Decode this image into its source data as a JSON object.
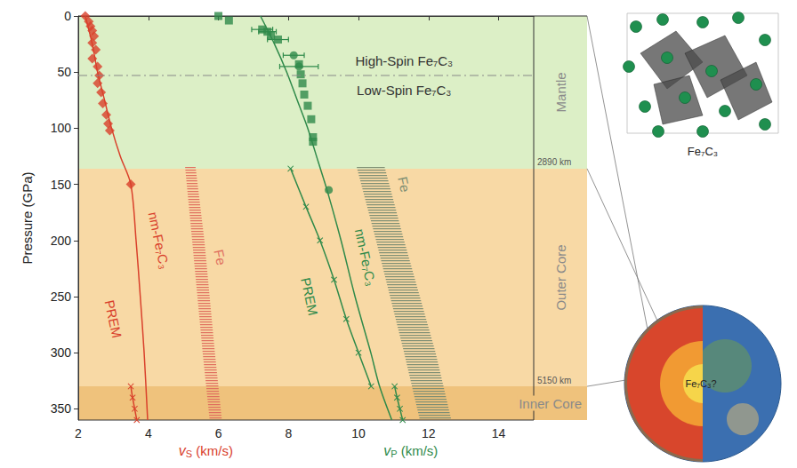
{
  "chart_data": {
    "type": "line",
    "y_label": "Pressure (GPa)",
    "x_labels": [
      {
        "symbol": "v",
        "subscript": "S",
        "unit": "(km/s)",
        "color": "#d9402b"
      },
      {
        "symbol": "v",
        "subscript": "P",
        "unit": "(km/s)",
        "color": "#2f8a4a"
      }
    ],
    "xlim": [
      2,
      15
    ],
    "xticks": [
      2,
      4,
      6,
      8,
      10,
      12,
      14
    ],
    "ylim": [
      0,
      360
    ],
    "yticks": [
      0,
      50,
      100,
      150,
      200,
      250,
      300,
      350
    ],
    "grid": false,
    "regions": [
      {
        "label": "Mantle",
        "from": 0,
        "to": 136,
        "color": "#dcefc6"
      },
      {
        "label": "Outer Core",
        "from": 136,
        "to": 330,
        "color": "#f8d9a5"
      },
      {
        "label": "Inner Core",
        "from": 330,
        "to": 360,
        "color": "#efc27c"
      }
    ],
    "boundaries": [
      {
        "pressure": 136,
        "label": "2890 km"
      },
      {
        "pressure": 330,
        "label": "5150 km"
      }
    ],
    "spin_transition": {
      "pressure": 53,
      "above": "High-Spin Fe₇C₃",
      "below": "Low-Spin Fe₇C₃",
      "text_at": [
        [
          11.3,
          40
        ],
        [
          11.3,
          66
        ]
      ]
    },
    "series": [
      {
        "type": "scatter",
        "marker": "diamond",
        "color": "#d9402b",
        "points": [
          [
            2.2,
            0
          ],
          [
            2.3,
            5
          ],
          [
            2.35,
            9
          ],
          [
            2.4,
            13
          ],
          [
            2.45,
            18
          ],
          [
            2.4,
            24
          ],
          [
            2.5,
            30
          ],
          [
            2.4,
            38
          ],
          [
            2.55,
            45
          ],
          [
            2.6,
            53
          ],
          [
            2.55,
            60
          ],
          [
            2.65,
            68
          ],
          [
            2.7,
            78
          ],
          [
            2.8,
            88
          ],
          [
            2.85,
            96
          ],
          [
            2.9,
            102
          ],
          [
            3.5,
            150
          ]
        ]
      },
      {
        "marker": "none",
        "color": "#d9402b",
        "label": "nm-Fe₇C₃",
        "label_at": [
          4.3,
          200
        ],
        "points": [
          [
            2.2,
            0
          ],
          [
            2.4,
            25
          ],
          [
            2.55,
            50
          ],
          [
            2.75,
            75
          ],
          [
            2.95,
            100
          ],
          [
            3.2,
            125
          ],
          [
            3.5,
            150
          ],
          [
            3.65,
            200
          ],
          [
            3.77,
            250
          ],
          [
            3.88,
            300
          ],
          [
            3.98,
            360
          ]
        ]
      },
      {
        "marker": "cross",
        "color": "#d9402b",
        "label": "PREM",
        "label_at": [
          3.0,
          270
        ],
        "points": [
          [
            3.5,
            330
          ],
          [
            3.55,
            340
          ],
          [
            3.61,
            350
          ],
          [
            3.67,
            360
          ]
        ]
      },
      {
        "type": "band",
        "color": "#e0705f",
        "label": "Fe",
        "label_at": [
          6.05,
          215
        ],
        "pressure": [
          135,
          200,
          250,
          300,
          360
        ],
        "vmin": [
          5.05,
          5.25,
          5.4,
          5.55,
          5.75
        ],
        "vmax": [
          5.35,
          5.6,
          5.75,
          5.9,
          6.1
        ]
      },
      {
        "type": "scatter",
        "marker": "square",
        "color": "#2f8a4a",
        "points": [
          [
            6.0,
            0
          ],
          [
            6.3,
            4
          ],
          [
            7.25,
            12
          ],
          [
            7.4,
            14
          ],
          [
            7.5,
            17
          ],
          [
            7.7,
            21
          ],
          [
            8.3,
            43
          ],
          [
            8.35,
            52
          ],
          [
            8.4,
            60
          ],
          [
            8.45,
            70
          ],
          [
            8.55,
            80
          ],
          [
            8.65,
            92
          ],
          [
            8.7,
            108
          ],
          [
            8.7,
            112
          ]
        ],
        "xerr": [
          null,
          null,
          0.3,
          0.25,
          null,
          0.3,
          null,
          null,
          null,
          null,
          null,
          null,
          null,
          null
        ]
      },
      {
        "type": "scatter",
        "marker": "circle",
        "color": "#2f8a4a",
        "points": [
          [
            8.15,
            35
          ],
          [
            8.3,
            45
          ],
          [
            9.15,
            155
          ]
        ],
        "xerr": [
          0.3,
          0.55,
          null
        ]
      },
      {
        "marker": "none",
        "color": "#2f8a4a",
        "label": "nm-Fe₇C₃",
        "label_at": [
          10.2,
          215
        ],
        "points": [
          [
            7.2,
            0
          ],
          [
            7.6,
            25
          ],
          [
            7.95,
            50
          ],
          [
            8.25,
            75
          ],
          [
            8.55,
            100
          ],
          [
            8.85,
            130
          ],
          [
            9.1,
            155
          ],
          [
            9.5,
            200
          ],
          [
            9.9,
            250
          ],
          [
            10.35,
            300
          ],
          [
            10.6,
            330
          ],
          [
            10.95,
            360
          ]
        ]
      },
      {
        "marker": "cross",
        "color": "#2f8a4a",
        "label": "PREM",
        "label_at": [
          8.6,
          250
        ],
        "points": [
          [
            8.06,
            136
          ],
          [
            8.5,
            170
          ],
          [
            8.9,
            200
          ],
          [
            9.3,
            235
          ],
          [
            9.65,
            270
          ],
          [
            10.0,
            300
          ],
          [
            10.36,
            330
          ],
          null,
          [
            11.03,
            330
          ],
          [
            11.1,
            340
          ],
          [
            11.18,
            350
          ],
          [
            11.26,
            360
          ]
        ]
      },
      {
        "type": "band",
        "color": "#7f8f74",
        "label": "Fe",
        "label_at": [
          11.3,
          150
        ],
        "pressure": [
          135,
          200,
          250,
          300,
          360
        ],
        "vmin": [
          9.95,
          10.5,
          10.9,
          11.3,
          11.75
        ],
        "vmax": [
          10.75,
          11.3,
          11.75,
          12.2,
          12.65
        ]
      }
    ],
    "inset": {
      "structure_label": "Fe₇C₃",
      "core_label": "Fe₇C₃?"
    }
  }
}
